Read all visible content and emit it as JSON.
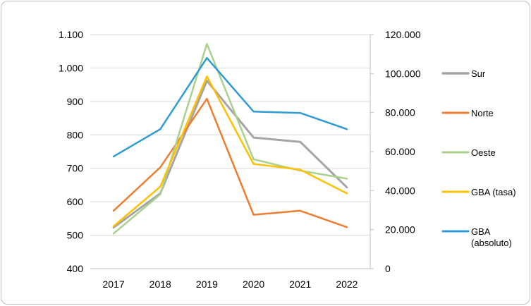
{
  "chart_data": {
    "type": "line",
    "title": "",
    "categories": [
      "2017",
      "2018",
      "2019",
      "2020",
      "2021",
      "2022"
    ],
    "y_left": {
      "ylim": [
        400,
        1100
      ],
      "ticks": [
        400,
        500,
        600,
        700,
        800,
        900,
        1000,
        1100
      ],
      "tick_labels": [
        "400",
        "500",
        "600",
        "700",
        "800",
        "900",
        "1.000",
        "1.100"
      ]
    },
    "y_right": {
      "ylim": [
        0,
        120000
      ],
      "ticks": [
        0,
        20000,
        40000,
        60000,
        80000,
        100000,
        120000
      ],
      "tick_labels": [
        "0",
        "20.000",
        "40.000",
        "60.000",
        "80.000",
        "100.000",
        "120.000"
      ]
    },
    "grid": "horizontal",
    "legend_position": "right",
    "series": [
      {
        "name": "Sur",
        "axis": "left",
        "color": "#a5a5a5",
        "width": 3,
        "values": [
          523,
          625,
          962,
          792,
          779,
          643
        ]
      },
      {
        "name": "Norte",
        "axis": "left",
        "color": "#ed7d31",
        "width": 2.5,
        "values": [
          573,
          703,
          908,
          561,
          573,
          524
        ]
      },
      {
        "name": "Oeste",
        "axis": "left",
        "color": "#a9d18e",
        "width": 2.5,
        "values": [
          505,
          622,
          1072,
          727,
          693,
          669
        ]
      },
      {
        "name": "GBA (tasa)",
        "axis": "left",
        "color": "#ffc000",
        "width": 2.5,
        "values": [
          527,
          645,
          975,
          713,
          696,
          625
        ]
      },
      {
        "name": "GBA (absoluto)",
        "legend_lines": [
          "GBA",
          "(absoluto)"
        ],
        "axis": "right",
        "color": "#2e9bd6",
        "width": 2.5,
        "values": [
          57500,
          71500,
          108000,
          80500,
          79800,
          71500
        ]
      }
    ]
  }
}
